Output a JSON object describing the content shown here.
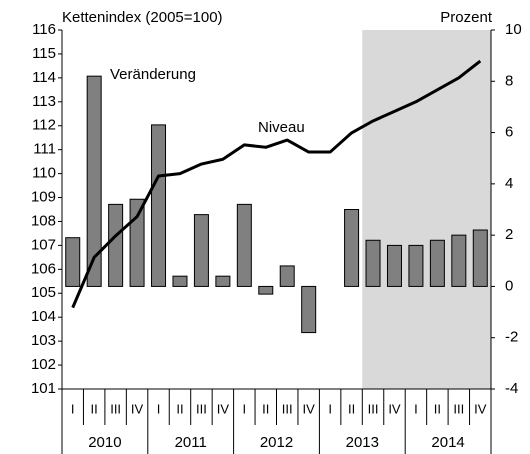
{
  "chart_data": {
    "type": "bar-line",
    "y_label": "Kettenindex (2005=100)",
    "y2_label": "Prozent",
    "annotations": [
      "Veränderung",
      "Niveau"
    ],
    "categories": [
      "I",
      "II",
      "III",
      "IV",
      "I",
      "II",
      "III",
      "IV",
      "I",
      "II",
      "III",
      "IV",
      "I",
      "II",
      "III",
      "IV",
      "I",
      "II",
      "III",
      "IV"
    ],
    "years": [
      "2010",
      "2011",
      "2012",
      "2013",
      "2014"
    ],
    "ylim": [
      101,
      116
    ],
    "yticks": [
      101,
      102,
      103,
      104,
      105,
      106,
      107,
      108,
      109,
      110,
      111,
      112,
      113,
      114,
      115,
      116
    ],
    "y2lim": [
      -4,
      10
    ],
    "y2ticks": [
      -4,
      -2,
      0,
      2,
      4,
      6,
      8,
      10
    ],
    "series": [
      {
        "name": "Veränderung",
        "type": "bar",
        "axis": "y2",
        "color": "#808080",
        "values": [
          1.9,
          8.2,
          3.2,
          3.4,
          6.3,
          0.4,
          2.8,
          0.4,
          3.2,
          -0.3,
          0.8,
          -1.8,
          null,
          3.0,
          1.8,
          1.6,
          1.6,
          1.8,
          2.0,
          2.2
        ]
      },
      {
        "name": "Niveau",
        "type": "line",
        "color": "#000000",
        "values": [
          104.4,
          106.5,
          107.4,
          108.2,
          109.9,
          110.0,
          110.4,
          110.6,
          111.2,
          111.1,
          111.4,
          110.9,
          110.9,
          111.7,
          112.2,
          112.6,
          113.0,
          113.5,
          114.0,
          114.7
        ]
      }
    ]
  }
}
